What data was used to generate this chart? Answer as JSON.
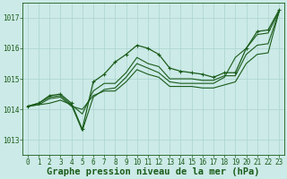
{
  "background_color": "#cceae7",
  "grid_color": "#aad4d0",
  "line_color": "#1a5c1a",
  "title": "Graphe pression niveau de la mer (hPa)",
  "xlim": [
    -0.5,
    23.5
  ],
  "ylim": [
    1012.5,
    1017.5
  ],
  "yticks": [
    1013,
    1014,
    1015,
    1016,
    1017
  ],
  "xticks": [
    0,
    1,
    2,
    3,
    4,
    5,
    6,
    7,
    8,
    9,
    10,
    11,
    12,
    13,
    14,
    15,
    16,
    17,
    18,
    19,
    20,
    21,
    22,
    23
  ],
  "line1": {
    "x": [
      0,
      1,
      2,
      3,
      4,
      5,
      6,
      7,
      8,
      9,
      10,
      11,
      12,
      13,
      14,
      15,
      16,
      17,
      18,
      19,
      20,
      21,
      22,
      23
    ],
    "y": [
      1014.1,
      1014.15,
      1014.2,
      1014.3,
      1014.15,
      1013.3,
      1014.4,
      1014.65,
      1014.7,
      1015.05,
      1015.5,
      1015.35,
      1015.2,
      1014.9,
      1014.85,
      1014.85,
      1014.85,
      1014.85,
      1015.05,
      1015.7,
      1016.0,
      1016.45,
      1016.5,
      1017.2
    ]
  },
  "line2": {
    "x": [
      0,
      1,
      2,
      3,
      4,
      5,
      6,
      7,
      8,
      9,
      10,
      11,
      12,
      13,
      14,
      15,
      16,
      17,
      18,
      19,
      20,
      21,
      22,
      23
    ],
    "y": [
      1014.1,
      1014.2,
      1014.45,
      1014.5,
      1014.2,
      1013.35,
      1014.9,
      1015.15,
      1015.55,
      1015.8,
      1016.1,
      1016.0,
      1015.8,
      1015.35,
      1015.25,
      1015.2,
      1015.15,
      1015.05,
      1015.2,
      1015.2,
      1016.0,
      1016.55,
      1016.6,
      1017.25
    ]
  },
  "line3": {
    "x": [
      0,
      1,
      2,
      3,
      4,
      5,
      6,
      7,
      8,
      9,
      10,
      11,
      12,
      13,
      14,
      15,
      16,
      17,
      18,
      19,
      20,
      21,
      22,
      23
    ],
    "y": [
      1014.1,
      1014.2,
      1014.4,
      1014.45,
      1014.15,
      1013.85,
      1014.6,
      1014.85,
      1014.85,
      1015.2,
      1015.7,
      1015.5,
      1015.4,
      1015.0,
      1015.0,
      1015.0,
      1014.95,
      1014.95,
      1015.1,
      1015.1,
      1015.8,
      1016.1,
      1016.15,
      1017.2
    ]
  },
  "line4": {
    "x": [
      0,
      1,
      2,
      3,
      4,
      5,
      6,
      7,
      8,
      9,
      10,
      11,
      12,
      13,
      14,
      15,
      16,
      17,
      18,
      19,
      20,
      21,
      22,
      23
    ],
    "y": [
      1014.1,
      1014.15,
      1014.35,
      1014.4,
      1014.1,
      1014.0,
      1014.45,
      1014.6,
      1014.6,
      1014.9,
      1015.3,
      1015.15,
      1015.05,
      1014.75,
      1014.75,
      1014.75,
      1014.7,
      1014.7,
      1014.8,
      1014.9,
      1015.5,
      1015.8,
      1015.85,
      1017.2
    ]
  },
  "title_fontsize": 7.5,
  "tick_fontsize": 5.5
}
